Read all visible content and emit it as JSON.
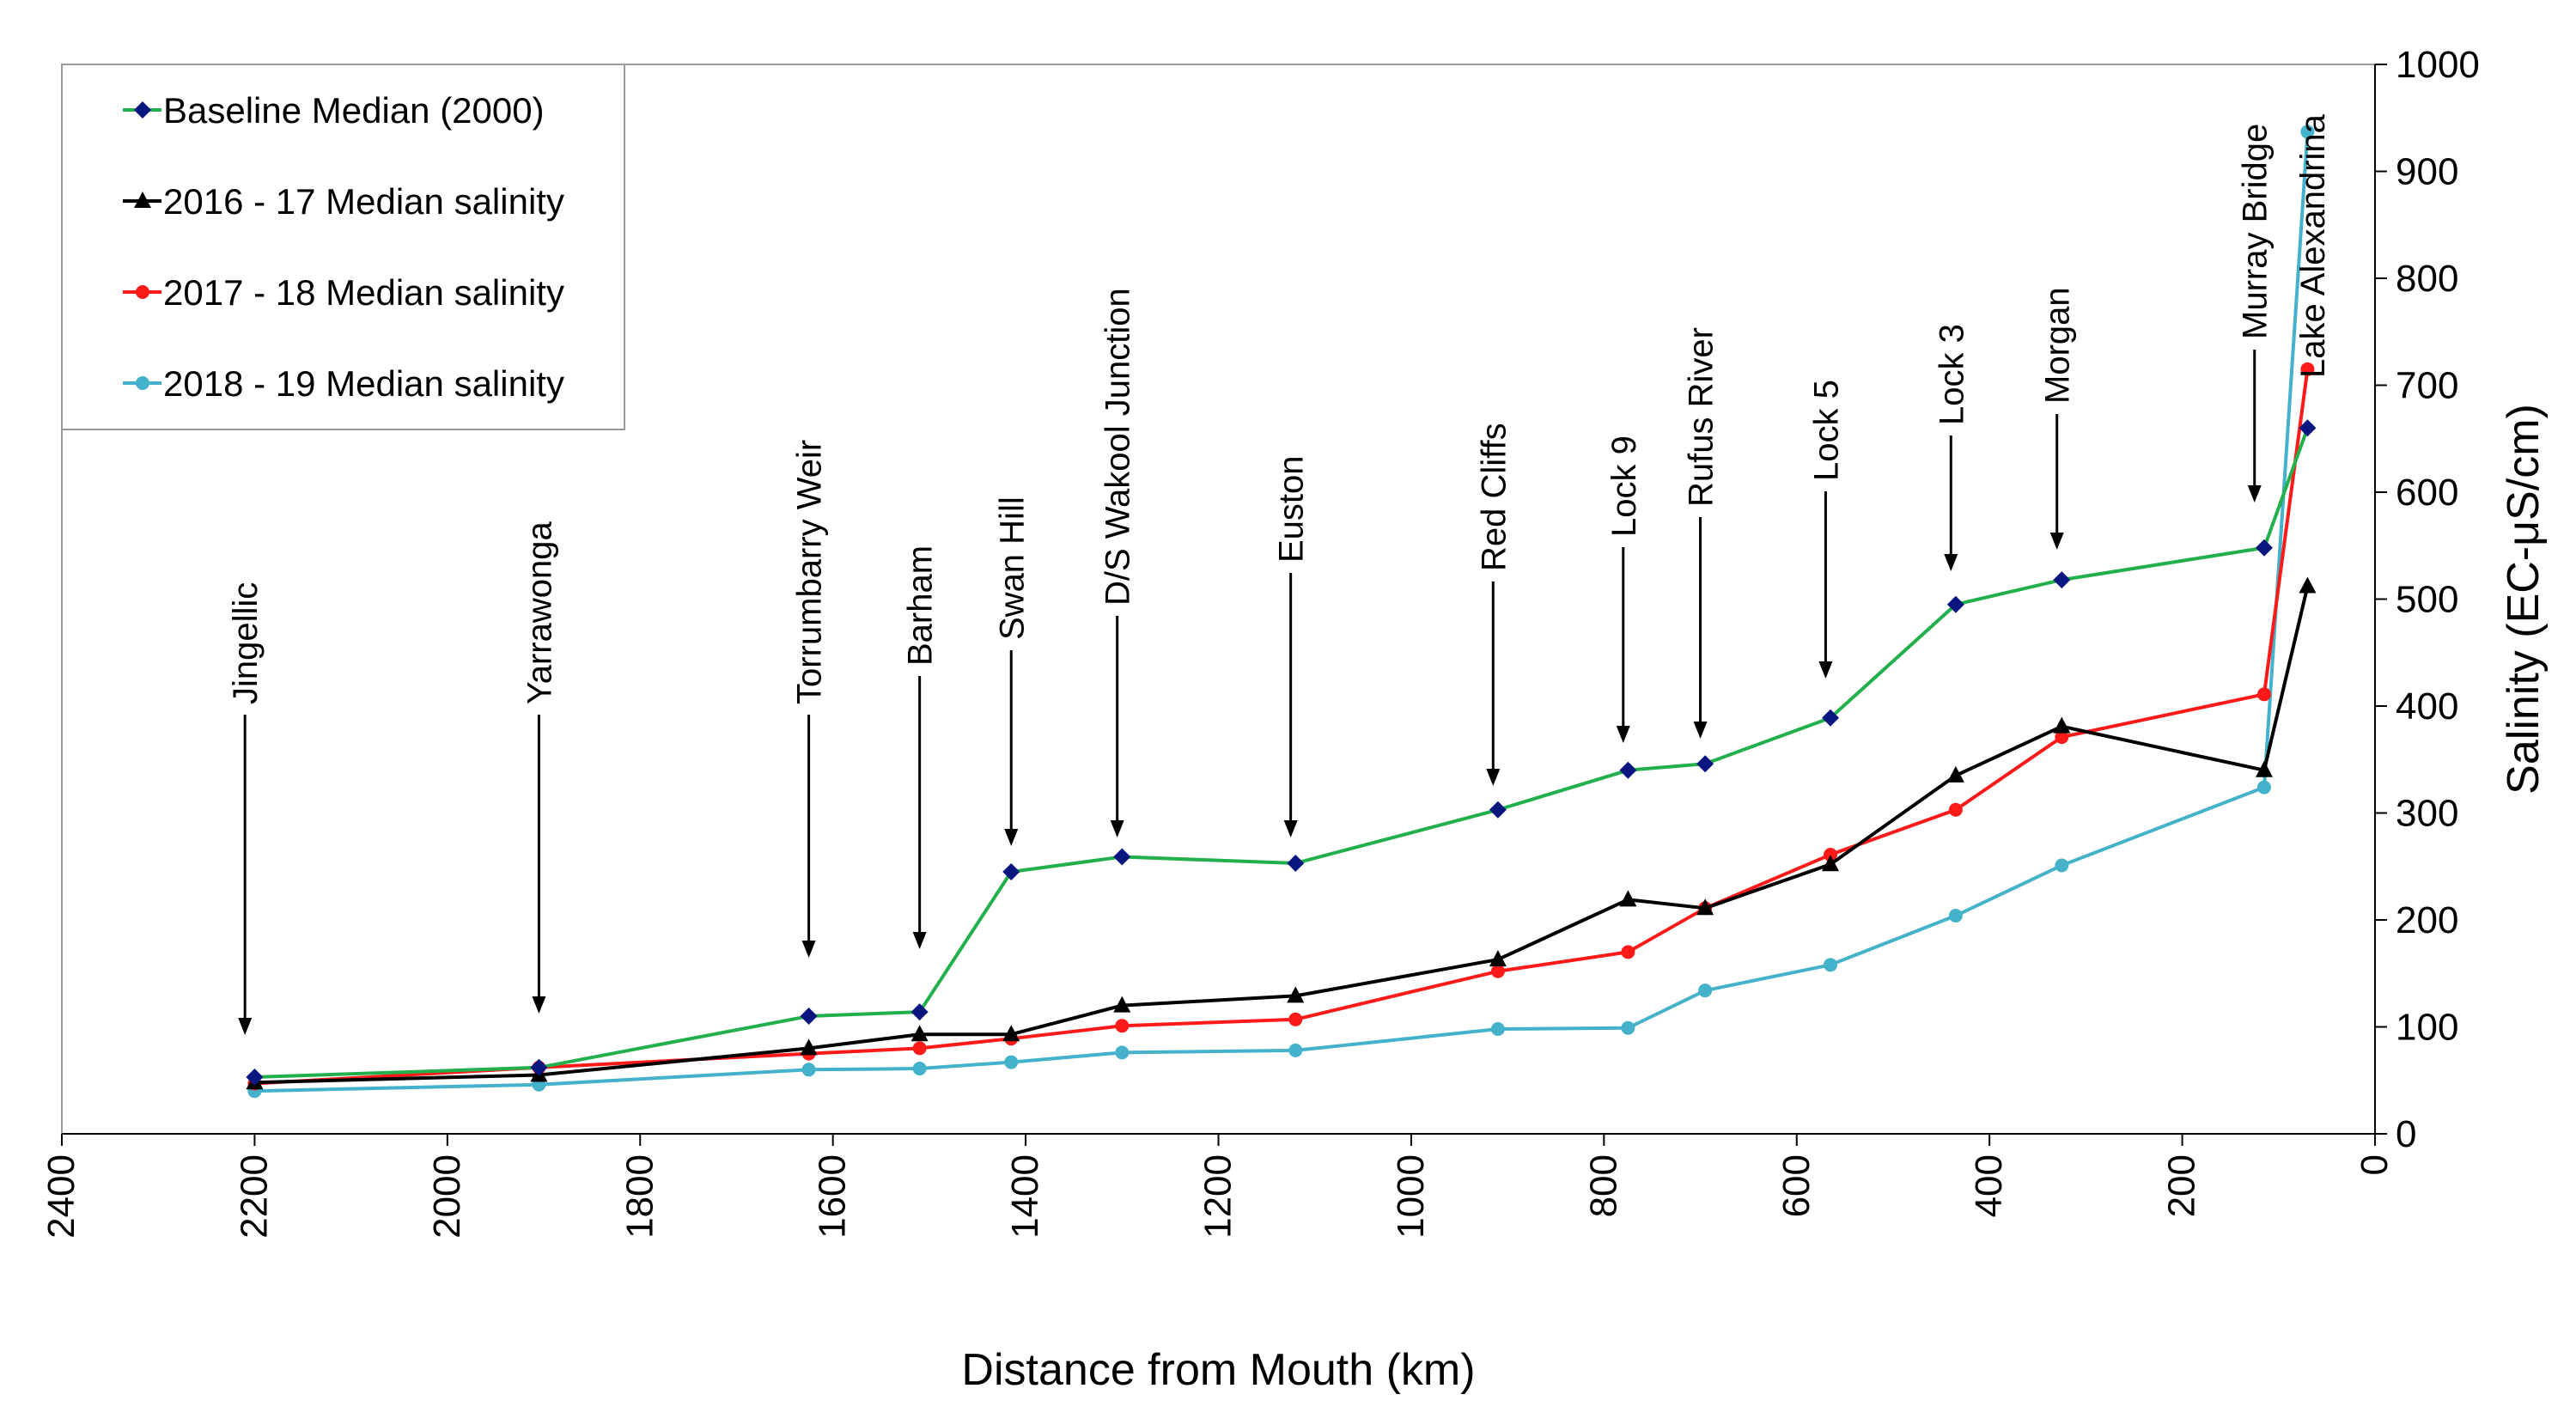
{
  "chart_data": {
    "type": "line",
    "title": "",
    "xlabel": "Distance from Mouth (km)",
    "ylabel": "Salinity (EC-μS/cm)",
    "xlim": [
      2400,
      0
    ],
    "ylim": [
      0,
      1000
    ],
    "x_reversed": true,
    "y_axis_side": "right",
    "x_ticks": [
      2400,
      2200,
      2000,
      1800,
      1600,
      1400,
      1200,
      1000,
      800,
      600,
      400,
      200,
      0
    ],
    "y_ticks": [
      0,
      100,
      200,
      300,
      400,
      500,
      600,
      700,
      800,
      900,
      1000
    ],
    "legend_position": "top-left",
    "sites": [
      {
        "name": "Jingellic",
        "km": 2210
      },
      {
        "name": "Yarrawonga",
        "km": 1905
      },
      {
        "name": "Torrumbarry Weir",
        "km": 1625
      },
      {
        "name": "Barham",
        "km": 1510
      },
      {
        "name": "Swan Hill",
        "km": 1415
      },
      {
        "name": "D/S Wakool Junction",
        "km": 1305
      },
      {
        "name": "Euston",
        "km": 1125
      },
      {
        "name": "Red Cliffs",
        "km": 915
      },
      {
        "name": "Lock 9",
        "km": 780
      },
      {
        "name": "Rufus River",
        "km": 700
      },
      {
        "name": "Lock 5",
        "km": 570
      },
      {
        "name": "Lock 3",
        "km": 440
      },
      {
        "name": "Morgan",
        "km": 330
      },
      {
        "name": "Murray Bridge",
        "km": 125
      },
      {
        "name": "Lake Alexandrina",
        "km": 65
      }
    ],
    "series": [
      {
        "name": "Baseline Median (2000)",
        "color": "#21b04b",
        "marker": "diamond",
        "marker_color": "#0a1680",
        "x": [
          2200,
          1905,
          1625,
          1510,
          1415,
          1300,
          1120,
          910,
          775,
          695,
          565,
          435,
          325,
          115,
          70
        ],
        "values": [
          53,
          62,
          110,
          114,
          245,
          259,
          253,
          303,
          340,
          346,
          389,
          495,
          518,
          548,
          660
        ]
      },
      {
        "name": "2016 - 17 Median salinity",
        "color": "#000000",
        "marker": "triangle",
        "marker_color": "#000000",
        "x": [
          2200,
          1905,
          1625,
          1510,
          1415,
          1300,
          1120,
          910,
          775,
          695,
          565,
          435,
          325,
          115,
          70
        ],
        "values": [
          48,
          55,
          80,
          93,
          93,
          120,
          129,
          163,
          219,
          211,
          252,
          335,
          381,
          340,
          512
        ]
      },
      {
        "name": "2017 - 18 Median salinity",
        "color": "#ff1a1a",
        "marker": "circle",
        "marker_color": "#ff1a1a",
        "x": [
          2200,
          1905,
          1625,
          1510,
          1415,
          1300,
          1120,
          910,
          775,
          695,
          565,
          435,
          325,
          115,
          70
        ],
        "values": [
          47,
          62,
          75,
          80,
          89,
          101,
          107,
          152,
          170,
          211,
          261,
          303,
          371,
          411,
          715
        ]
      },
      {
        "name": "2018 - 19 Median salinity",
        "color": "#45b2cc",
        "marker": "circle",
        "marker_color": "#45b2cc",
        "x": [
          2200,
          1905,
          1625,
          1510,
          1415,
          1300,
          1120,
          910,
          775,
          695,
          565,
          435,
          325,
          115,
          70
        ],
        "values": [
          40,
          46,
          60,
          61,
          67,
          76,
          78,
          98,
          99,
          134,
          158,
          204,
          251,
          324,
          937
        ]
      }
    ]
  }
}
